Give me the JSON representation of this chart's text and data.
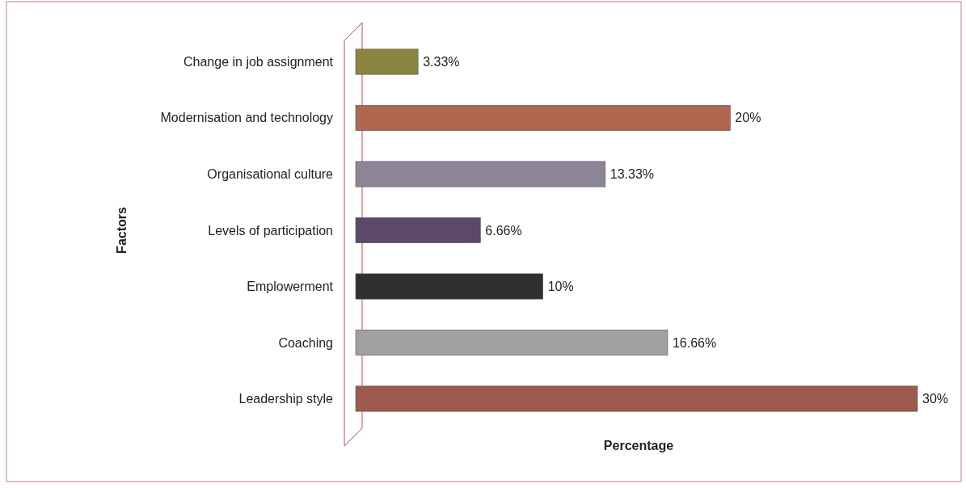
{
  "chart_data": {
    "type": "bar",
    "orientation": "horizontal",
    "xlabel": "Percentage",
    "ylabel": "Factors",
    "categories": [
      "Change in job assignment",
      "Modernisation and technology",
      "Organisational culture",
      "Levels  of participation",
      "Emplowerment",
      "Coaching",
      "Leadership style"
    ],
    "values": [
      3.33,
      20,
      13.33,
      6.66,
      10,
      16.66,
      30
    ],
    "colors": [
      "#8a8440",
      "#b0674f",
      "#8c8598",
      "#5c4868",
      "#303030",
      "#a0a0a0",
      "#9c5a4e"
    ],
    "value_labels": [
      "3.33%",
      "20%",
      "13.33%",
      "6.66%",
      "10%",
      "16.66%",
      "30%"
    ]
  }
}
